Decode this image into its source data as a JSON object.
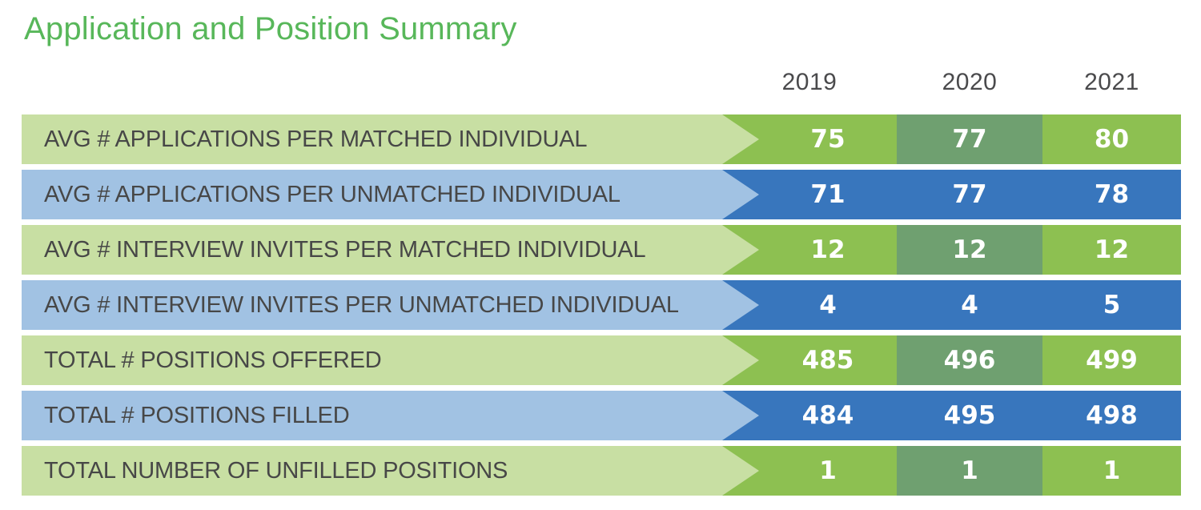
{
  "title": "Application and Position Summary",
  "colors": {
    "title-green": "#58B75A",
    "green-light": "#C8DFA3",
    "green-bright": "#8DC051",
    "green-sage": "#6FA070",
    "blue-light": "#A1C2E3",
    "blue-dark": "#3876BD",
    "header-text": "#4A4A4C",
    "label-text": "#474747",
    "value-text": "#FFFFFF"
  },
  "table": {
    "years": [
      "2019",
      "2020",
      "2021"
    ],
    "rows": [
      {
        "label": "AVG # APPLICATIONS PER MATCHED INDIVIDUAL",
        "theme": "green",
        "values": [
          "75",
          "77",
          "80"
        ]
      },
      {
        "label": "AVG # APPLICATIONS PER UNMATCHED INDIVIDUAL",
        "theme": "blue",
        "values": [
          "71",
          "77",
          "78"
        ]
      },
      {
        "label": "AVG # INTERVIEW INVITES PER MATCHED INDIVIDUAL",
        "theme": "green",
        "values": [
          "12",
          "12",
          "12"
        ]
      },
      {
        "label": "AVG # INTERVIEW INVITES PER UNMATCHED INDIVIDUAL",
        "theme": "blue",
        "values": [
          "4",
          "4",
          "5"
        ]
      },
      {
        "label": "TOTAL # POSITIONS OFFERED",
        "theme": "green",
        "values": [
          "485",
          "496",
          "499"
        ]
      },
      {
        "label": "TOTAL # POSITIONS FILLED",
        "theme": "blue",
        "values": [
          "484",
          "495",
          "498"
        ]
      },
      {
        "label": "TOTAL NUMBER OF UNFILLED POSITIONS",
        "theme": "green",
        "values": [
          "1",
          "1",
          "1"
        ]
      }
    ]
  },
  "chart_data": {
    "type": "table",
    "title": "Application and Position Summary",
    "columns": [
      "2019",
      "2020",
      "2021"
    ],
    "row_labels": [
      "AVG # APPLICATIONS PER MATCHED INDIVIDUAL",
      "AVG # APPLICATIONS PER UNMATCHED INDIVIDUAL",
      "AVG # INTERVIEW INVITES PER MATCHED INDIVIDUAL",
      "AVG # INTERVIEW INVITES PER UNMATCHED INDIVIDUAL",
      "TOTAL # POSITIONS OFFERED",
      "TOTAL # POSITIONS FILLED",
      "TOTAL NUMBER OF UNFILLED POSITIONS"
    ],
    "series": [
      {
        "name": "2019",
        "values": [
          75,
          71,
          12,
          4,
          485,
          484,
          1
        ]
      },
      {
        "name": "2020",
        "values": [
          77,
          77,
          12,
          4,
          496,
          495,
          1
        ]
      },
      {
        "name": "2021",
        "values": [
          80,
          78,
          12,
          5,
          499,
          498,
          1
        ]
      }
    ],
    "legend_position": "none",
    "grid": false
  }
}
